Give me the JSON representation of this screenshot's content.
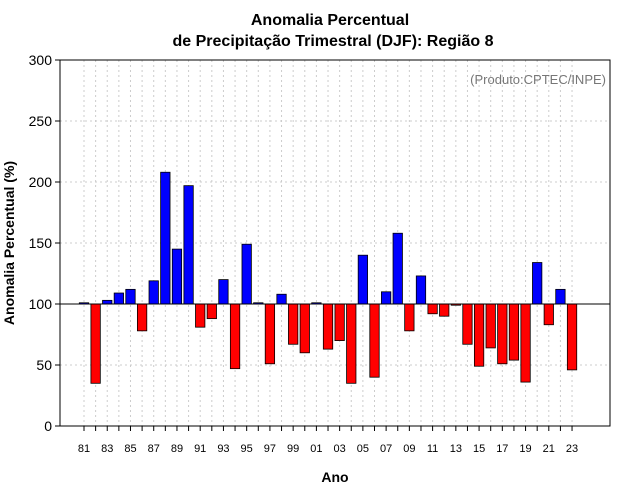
{
  "chart_data": {
    "type": "bar",
    "title_line1": "Anomalia Percentual",
    "title_line2": "de Precipitação Trimestral (DJF): Região 8",
    "xlabel": "Ano",
    "ylabel": "Anomalia Percentual (%)",
    "credit": "(Produto:CPTEC/INPE)",
    "baseline": 100,
    "ylim": [
      0,
      300
    ],
    "yticks": [
      "0",
      "50",
      "100",
      "150",
      "200",
      "250",
      "300"
    ],
    "categories": [
      "81",
      "82",
      "83",
      "84",
      "85",
      "86",
      "87",
      "88",
      "89",
      "90",
      "91",
      "92",
      "93",
      "94",
      "95",
      "96",
      "97",
      "98",
      "99",
      "00",
      "01",
      "02",
      "03",
      "04",
      "05",
      "06",
      "07",
      "08",
      "09",
      "10",
      "11",
      "12",
      "13",
      "14",
      "15",
      "16",
      "17",
      "18",
      "19",
      "20",
      "21",
      "22",
      "23"
    ],
    "xtick_labels": [
      "81",
      "83",
      "85",
      "87",
      "89",
      "91",
      "93",
      "95",
      "97",
      "99",
      "01",
      "03",
      "05",
      "07",
      "09",
      "11",
      "13",
      "15",
      "17",
      "19",
      "21",
      "23"
    ],
    "values": [
      101,
      35,
      103,
      109,
      112,
      78,
      119,
      208,
      145,
      197,
      81,
      88,
      120,
      47,
      149,
      101,
      51,
      108,
      67,
      60,
      101,
      63,
      70,
      35,
      140,
      40,
      110,
      158,
      78,
      123,
      92,
      90,
      99,
      67,
      49,
      64,
      51,
      54,
      36,
      134,
      83,
      112,
      46
    ],
    "colors": {
      "above": "#0000ff",
      "below": "#ff0000",
      "outline": "#000000",
      "grid": "#cccccc"
    },
    "grid": true
  }
}
